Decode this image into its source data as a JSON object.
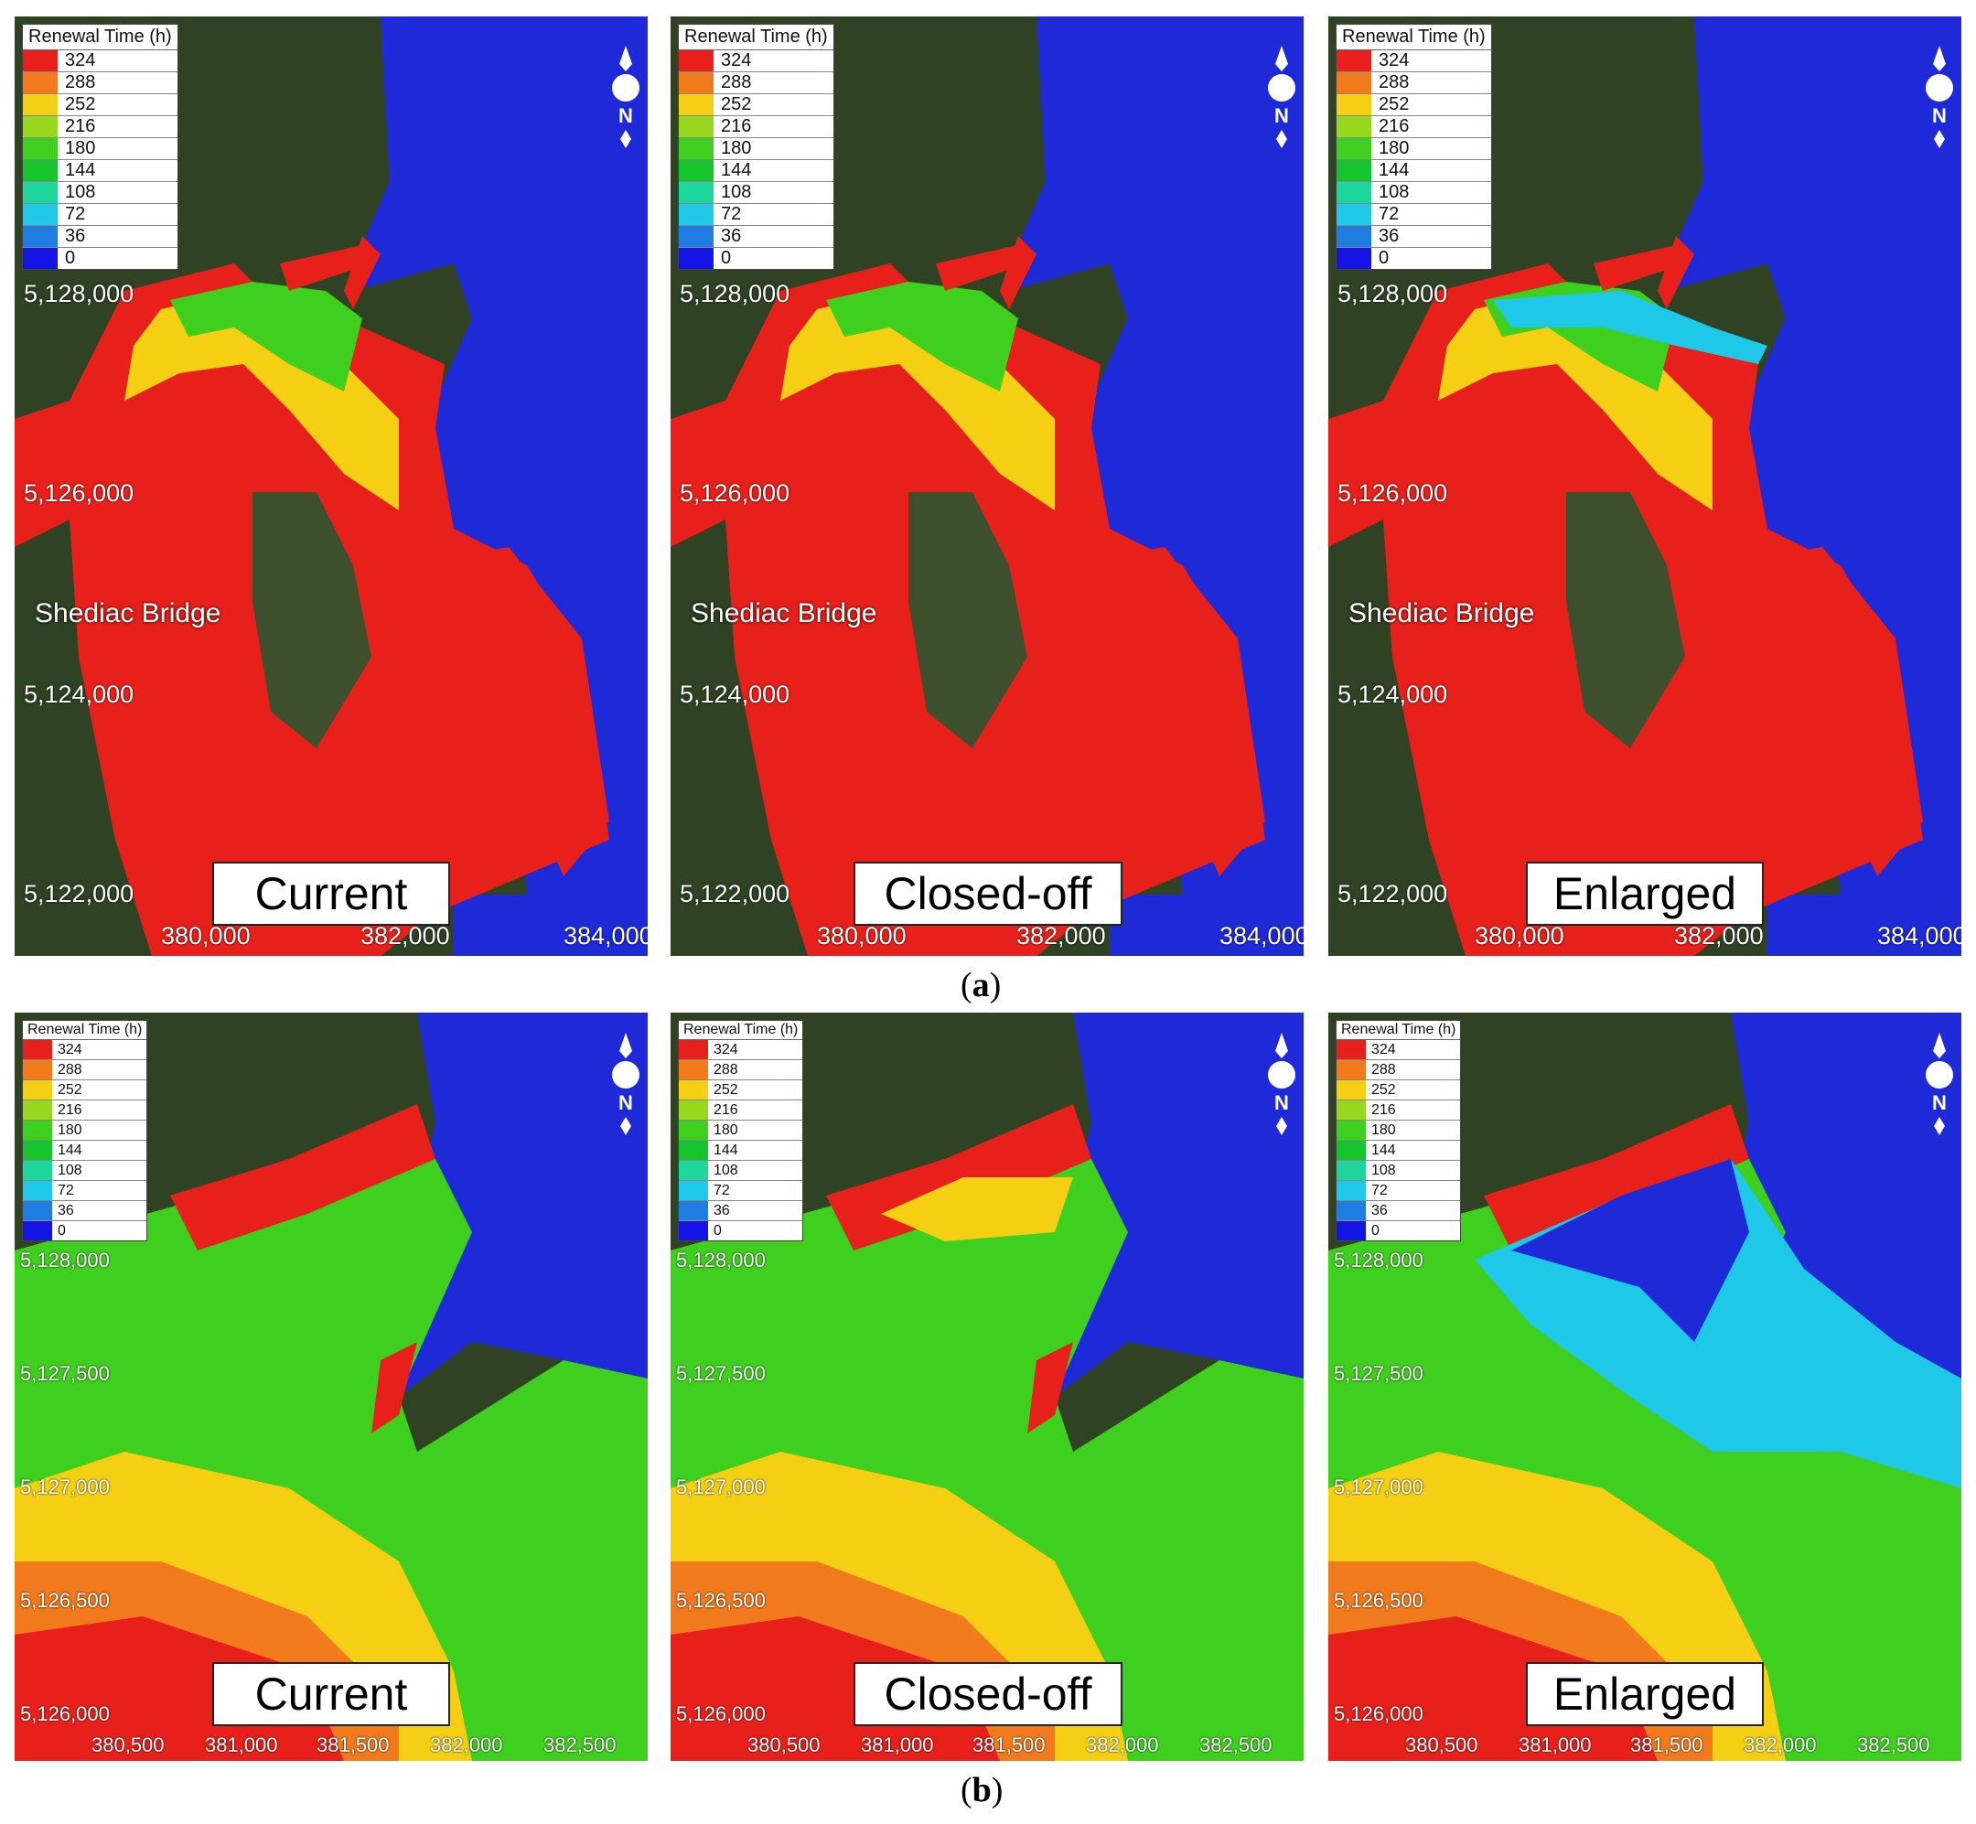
{
  "legend": {
    "title": "Renewal Time (h)",
    "entries": [
      {
        "value": "324",
        "color": "#e8201b"
      },
      {
        "value": "288",
        "color": "#f07a1c"
      },
      {
        "value": "252",
        "color": "#f5cf14"
      },
      {
        "value": "216",
        "color": "#98d81f"
      },
      {
        "value": "180",
        "color": "#3fcf1f"
      },
      {
        "value": "144",
        "color": "#16c42e"
      },
      {
        "value": "108",
        "color": "#1fd69a"
      },
      {
        "value": "72",
        "color": "#1fc8e6"
      },
      {
        "value": "36",
        "color": "#1f7de0"
      },
      {
        "value": "0",
        "color": "#1414e4"
      }
    ]
  },
  "north_label": "N",
  "place_label": "Shediac Bridge",
  "row_a": {
    "caption": "a",
    "y_ticks": [
      "5,128,000",
      "5,126,000",
      "5,124,000",
      "5,122,000"
    ],
    "x_ticks": [
      "380,000",
      "382,000",
      "384,000"
    ]
  },
  "row_b": {
    "caption": "b",
    "y_ticks": [
      "5,128,000",
      "5,127,500",
      "5,127,000",
      "5,126,500",
      "5,126,000"
    ],
    "x_ticks": [
      "380,500",
      "381,000",
      "381,500",
      "382,000",
      "382,500"
    ]
  },
  "scenarios": [
    "Current",
    "Closed-off",
    "Enlarged"
  ],
  "colors": {
    "land": "#2c3d22",
    "ocean": "#1e2ad8",
    "frame_text": "#000000"
  }
}
